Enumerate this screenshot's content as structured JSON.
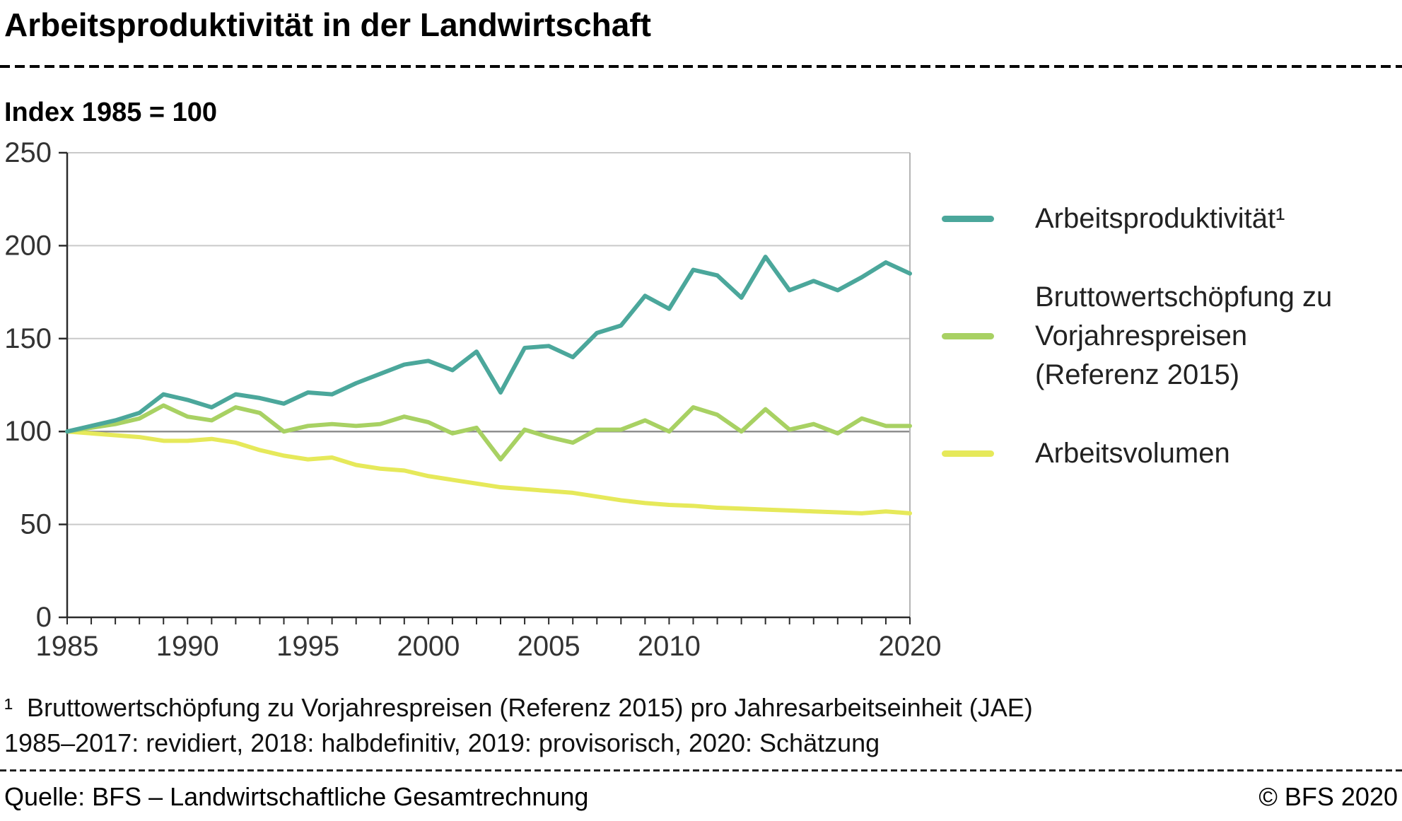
{
  "header": {
    "title": "Arbeitsproduktivität in der Landwirtschaft",
    "subtitle": "Index 1985 = 100"
  },
  "legend": {
    "items": [
      {
        "key": "arbeitsproduktivitaet",
        "label": "Arbeitsproduktivität¹",
        "color": "#4BA79B"
      },
      {
        "key": "bruttowertschoepfung",
        "label": "Bruttowertschöpfung zu\nVorjahrespreisen\n(Referenz 2015)",
        "color": "#A8D163"
      },
      {
        "key": "arbeitsvolumen",
        "label": "Arbeitsvolumen",
        "color": "#E6E95A"
      }
    ]
  },
  "chart_data": {
    "type": "line",
    "title": "Arbeitsproduktivität in der Landwirtschaft",
    "index_note": "Index 1985 = 100",
    "x": [
      1985,
      1986,
      1987,
      1988,
      1989,
      1990,
      1991,
      1992,
      1993,
      1994,
      1995,
      1996,
      1997,
      1998,
      1999,
      2000,
      2001,
      2002,
      2003,
      2004,
      2005,
      2006,
      2007,
      2008,
      2009,
      2010,
      2011,
      2012,
      2013,
      2014,
      2015,
      2016,
      2017,
      2018,
      2019,
      2020
    ],
    "ylim": [
      0,
      250
    ],
    "yticks": [
      0,
      50,
      100,
      150,
      200,
      250
    ],
    "xtick_labels": [
      1985,
      1990,
      1995,
      2000,
      2005,
      2010,
      2020
    ],
    "emphasized_y": 100,
    "grid": true,
    "legend_position": "right",
    "series": [
      {
        "key": "arbeitsproduktivitaet",
        "name": "Arbeitsproduktivität¹",
        "color": "#4BA79B",
        "values": [
          100,
          103,
          106,
          110,
          120,
          117,
          113,
          120,
          118,
          115,
          121,
          120,
          126,
          131,
          136,
          138,
          133,
          143,
          121,
          145,
          146,
          140,
          153,
          157,
          173,
          166,
          187,
          184,
          172,
          194,
          176,
          181,
          176,
          183,
          191,
          185
        ]
      },
      {
        "key": "bruttowertschoepfung",
        "name": "Bruttowertschöpfung zu Vorjahrespreisen (Referenz 2015)",
        "color": "#A8D163",
        "values": [
          100,
          102,
          104,
          107,
          114,
          108,
          106,
          113,
          110,
          100,
          103,
          104,
          103,
          104,
          108,
          105,
          99,
          102,
          85,
          101,
          97,
          94,
          101,
          101,
          106,
          100,
          113,
          109,
          100,
          112,
          101,
          104,
          99,
          107,
          103,
          103
        ]
      },
      {
        "key": "arbeitsvolumen",
        "name": "Arbeitsvolumen",
        "color": "#E6E95A",
        "values": [
          100,
          99,
          98,
          97,
          95,
          95,
          96,
          94,
          90,
          87,
          85,
          86,
          82,
          80,
          79,
          76,
          74,
          72,
          70,
          69,
          68,
          67,
          65,
          63,
          61.5,
          60.5,
          60,
          59,
          58.5,
          58,
          57.5,
          57,
          56.5,
          56,
          57,
          56
        ]
      }
    ]
  },
  "footnotes": [
    "¹  Bruttowertschöpfung zu Vorjahrespreisen (Referenz 2015) pro Jahresarbeitseinheit (JAE)",
    "1985–2017: revidiert, 2018: halbdefinitiv, 2019: provisorisch, 2020: Schätzung"
  ],
  "footer": {
    "source": "Quelle: BFS – Landwirtschaftliche Gesamtrechnung",
    "copyright": "© BFS 2020"
  }
}
